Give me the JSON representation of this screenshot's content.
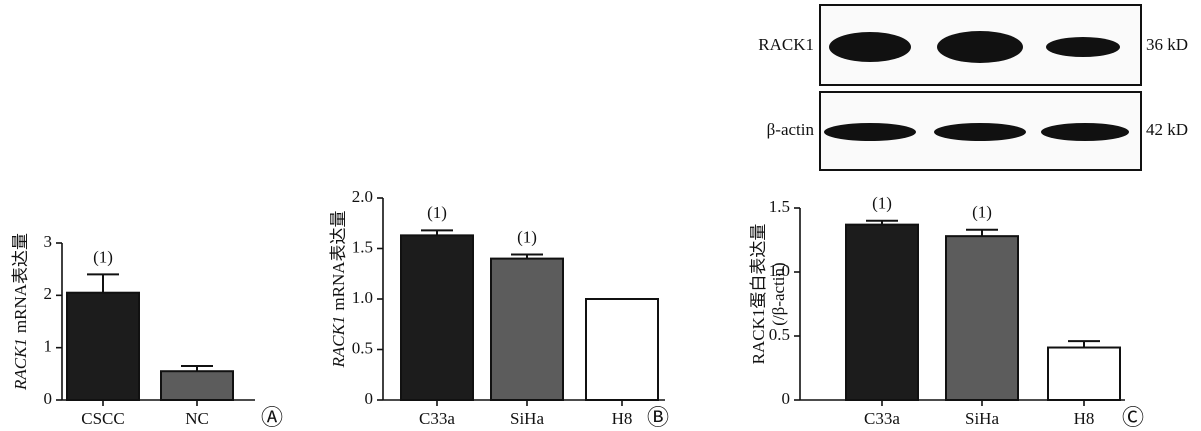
{
  "blot": {
    "rows": [
      {
        "label": "RACK1",
        "size": "36 kD"
      },
      {
        "label": "β-actin",
        "size": "42 kD"
      }
    ]
  },
  "chart_data": [
    {
      "type": "bar",
      "categories": [
        "CSCC",
        "NC"
      ],
      "values": [
        2.05,
        0.55
      ],
      "errors": [
        0.35,
        0.1
      ],
      "colors": [
        "#1c1c1c",
        "#5c5c5c"
      ],
      "markers": [
        "(1)",
        null
      ],
      "ylim": [
        0,
        3
      ],
      "yticks": [
        0,
        1,
        2,
        3
      ],
      "ylabel": {
        "italic": "RACK1",
        "text": "mRNA表达量"
      },
      "panel_label": "Ⓐ"
    },
    {
      "type": "bar",
      "categories": [
        "C33a",
        "SiHa",
        "H8"
      ],
      "values": [
        1.63,
        1.4,
        1.0
      ],
      "errors": [
        0.05,
        0.04,
        null
      ],
      "colors": [
        "#1c1c1c",
        "#5c5c5c",
        "#ffffff"
      ],
      "markers": [
        "(1)",
        "(1)",
        null
      ],
      "ylim": [
        0,
        2
      ],
      "yticks": [
        0,
        0.5,
        {
          "value": 1,
          "label": "1.0"
        },
        1.5,
        {
          "value": 2,
          "label": "2.0"
        }
      ],
      "ylabel": {
        "italic": "RACK1",
        "text": "mRNA表达量"
      },
      "panel_label": "Ⓑ"
    },
    {
      "type": "bar",
      "categories": [
        "C33a",
        "SiHa",
        "H8"
      ],
      "values": [
        1.37,
        1.28,
        0.41
      ],
      "errors": [
        0.03,
        0.05,
        0.05
      ],
      "colors": [
        "#1c1c1c",
        "#5c5c5c",
        "#ffffff"
      ],
      "markers": [
        "(1)",
        "(1)",
        null
      ],
      "ylim": [
        0,
        1.5
      ],
      "yticks": [
        0,
        0.5,
        {
          "value": 1,
          "label": "1.0"
        },
        1.5
      ],
      "ylabel": {
        "lines": [
          "RACK1蛋白表达量",
          "(/β-actin)"
        ]
      },
      "panel_label": "Ⓒ"
    }
  ]
}
